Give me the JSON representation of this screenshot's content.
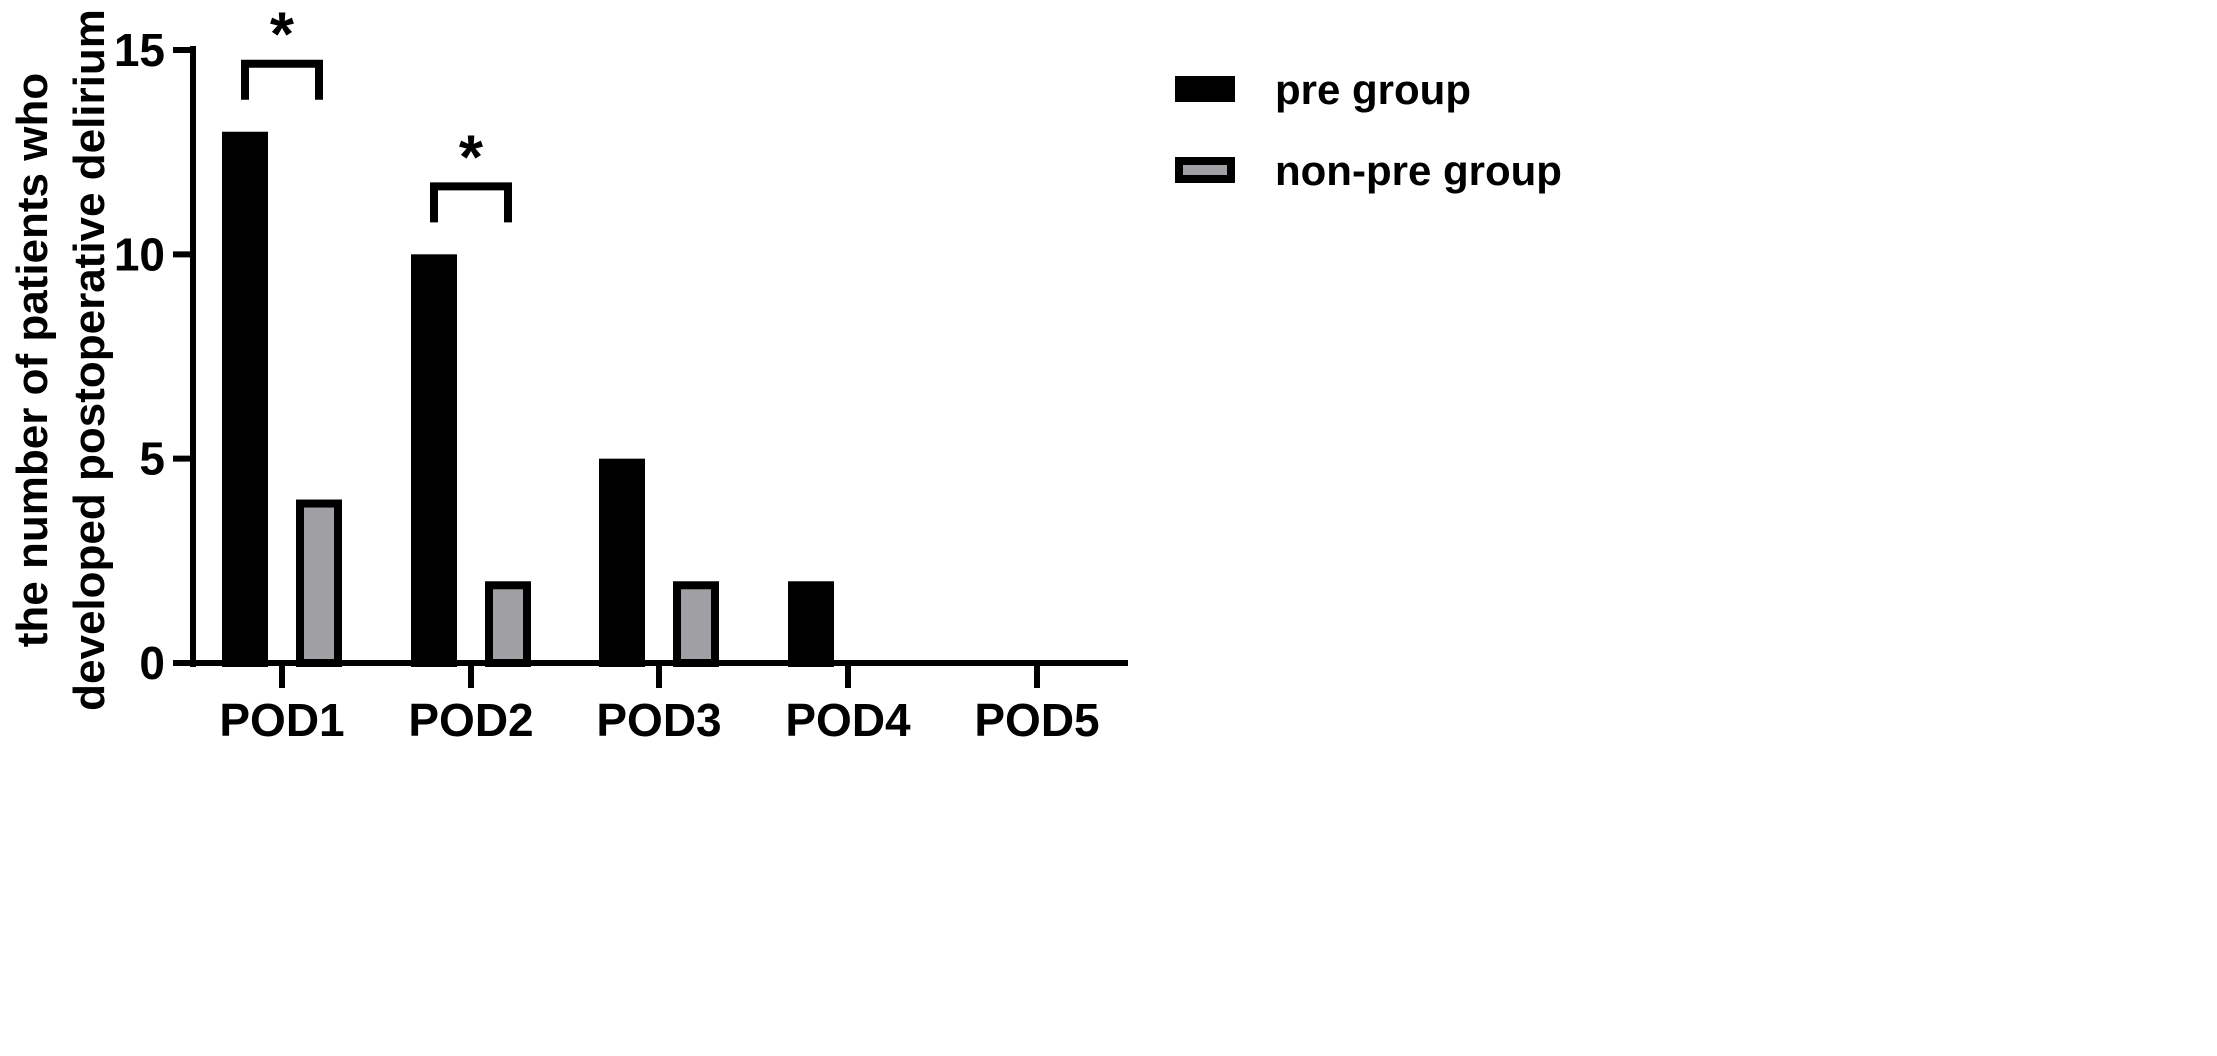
{
  "colors": {
    "pre_group": "#000000",
    "non_pre_group": "#a0a0a4",
    "axis": "#000000",
    "background": "#ffffff"
  },
  "chart_data": {
    "type": "bar",
    "ylabel": "the number of patients who developed postoperative delirium",
    "ylabel_lines": [
      "the number of patients who",
      "developed postoperative delirium"
    ],
    "xlabel": "",
    "title": "",
    "categories": [
      "POD1",
      "POD2",
      "POD3",
      "POD4",
      "POD5"
    ],
    "series": [
      {
        "name": "pre group",
        "values": [
          13,
          10,
          5,
          2,
          0
        ],
        "color": "#000000"
      },
      {
        "name": "non-pre group",
        "values": [
          4,
          2,
          2,
          0,
          0
        ],
        "color": "#a0a0a4"
      }
    ],
    "ylim": [
      0,
      15
    ],
    "yticks": [
      0,
      5,
      10,
      15
    ],
    "grid": false,
    "legend_position": "top-right",
    "annotations": [
      {
        "category": "POD1",
        "text": "*"
      },
      {
        "category": "POD2",
        "text": "*"
      }
    ]
  }
}
